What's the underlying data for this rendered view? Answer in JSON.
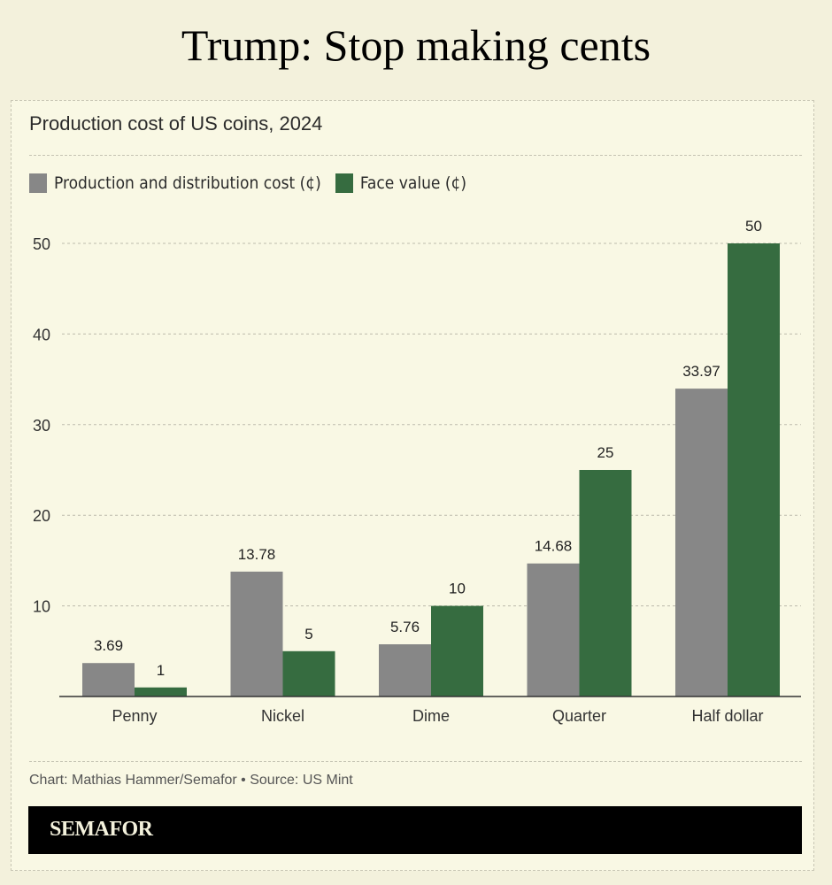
{
  "headline": "Trump: Stop making cents",
  "credit": "Chart: Mathias Hammer/Semafor • Source: US Mint",
  "brand": "SEMAFOR",
  "colors": {
    "cost": "#878787",
    "face": "#366c40"
  },
  "chart_data": {
    "type": "bar",
    "title": "Production cost of US coins, 2024",
    "categories": [
      "Penny",
      "Nickel",
      "Dime",
      "Quarter",
      "Half dollar"
    ],
    "series": [
      {
        "name": "Production and distribution cost (¢)",
        "values": [
          3.69,
          13.78,
          5.76,
          14.68,
          33.97
        ],
        "labels": [
          "3.69",
          "13.78",
          "5.76",
          "14.68",
          "33.97"
        ]
      },
      {
        "name": "Face value (¢)",
        "values": [
          1,
          5,
          10,
          25,
          50
        ],
        "labels": [
          "1",
          "5",
          "10",
          "25",
          "50"
        ]
      }
    ],
    "yticks": [
      10,
      20,
      30,
      40,
      50
    ],
    "ylim": [
      0,
      50
    ],
    "grid": true,
    "legend": "top-left",
    "xlabel": "",
    "ylabel": ""
  }
}
